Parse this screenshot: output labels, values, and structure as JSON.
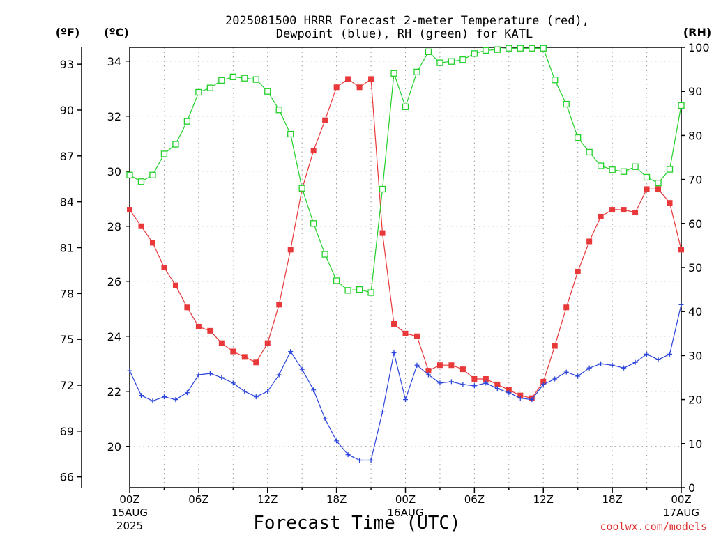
{
  "chart_data": {
    "type": "line",
    "title_line1": "2025081500 HRRR Forecast 2-meter Temperature (red),",
    "title_line2": "Dewpoint (blue), RH (green) for KATL",
    "left_unit_f": "(ºF)",
    "left_unit_c": "(ºC)",
    "right_unit": "(RH)",
    "xlabel": "Forecast Time (UTC)",
    "credit": "coolwx.com/models",
    "x_hours_range": [
      0,
      48
    ],
    "celsius_range": [
      18.5,
      34.5
    ],
    "rh_range": [
      0,
      100
    ],
    "grid": true,
    "fahrenheit_ticks": [
      66,
      69,
      72,
      75,
      78,
      81,
      84,
      87,
      90,
      93
    ],
    "celsius_ticks": [
      20,
      22,
      24,
      26,
      28,
      30,
      32,
      34
    ],
    "rh_ticks": [
      0,
      10,
      20,
      30,
      40,
      50,
      60,
      70,
      80,
      90,
      100
    ],
    "x_ticks": [
      {
        "hour": 0,
        "lines": [
          "00Z",
          "15AUG",
          "2025"
        ]
      },
      {
        "hour": 6,
        "lines": [
          "06Z"
        ]
      },
      {
        "hour": 12,
        "lines": [
          "12Z"
        ]
      },
      {
        "hour": 18,
        "lines": [
          "18Z"
        ]
      },
      {
        "hour": 24,
        "lines": [
          "00Z",
          "16AUG"
        ]
      },
      {
        "hour": 30,
        "lines": [
          "06Z"
        ]
      },
      {
        "hour": 36,
        "lines": [
          "12Z"
        ]
      },
      {
        "hour": 42,
        "lines": [
          "18Z"
        ]
      },
      {
        "hour": 48,
        "lines": [
          "00Z",
          "17AUG"
        ]
      }
    ],
    "series": [
      {
        "key": "temperature",
        "unit": "C",
        "color": "#e8383a",
        "marker": "filled-square",
        "values": [
          28.6,
          28.0,
          27.4,
          26.5,
          25.85,
          25.05,
          24.35,
          24.2,
          23.75,
          23.45,
          23.25,
          23.05,
          23.75,
          25.15,
          27.15,
          29.35,
          30.75,
          31.85,
          33.05,
          33.35,
          33.05,
          33.35,
          27.75,
          24.45,
          24.1,
          24.0,
          22.75,
          22.95,
          22.95,
          22.8,
          22.45,
          22.45,
          22.25,
          22.05,
          21.85,
          21.75,
          22.35,
          23.65,
          25.05,
          26.35,
          27.45,
          28.35,
          28.6,
          28.6,
          28.5,
          29.35,
          29.35,
          28.85,
          27.15
        ]
      },
      {
        "key": "dewpoint",
        "unit": "C",
        "color": "#2b45dc",
        "marker": "plus",
        "values": [
          22.75,
          21.85,
          21.65,
          21.8,
          21.7,
          21.95,
          22.6,
          22.65,
          22.5,
          22.3,
          22.0,
          21.8,
          22.0,
          22.6,
          23.45,
          22.8,
          22.05,
          21.0,
          20.2,
          19.7,
          19.5,
          19.5,
          21.25,
          23.4,
          21.7,
          22.95,
          22.6,
          22.3,
          22.35,
          22.25,
          22.2,
          22.3,
          22.1,
          21.95,
          21.75,
          21.7,
          22.25,
          22.45,
          22.7,
          22.55,
          22.85,
          23.0,
          22.95,
          22.85,
          23.05,
          23.35,
          23.15,
          23.35,
          25.15
        ]
      },
      {
        "key": "rh",
        "unit": "%",
        "color": "#22d02a",
        "marker": "open-square",
        "values": [
          71,
          69.5,
          71.0,
          75.8,
          78.0,
          83.2,
          89.8,
          90.8,
          92.5,
          93.3,
          93.0,
          92.7,
          90.0,
          85.8,
          80.3,
          68.0,
          60.0,
          53.0,
          47.0,
          44.8,
          45.0,
          44.3,
          67.8,
          94.1,
          86.5,
          94.4,
          99.0,
          96.5,
          96.8,
          97.2,
          98.6,
          99.3,
          99.5,
          99.8,
          99.8,
          99.8,
          99.8,
          92.6,
          87.1,
          79.5,
          76.2,
          73.1,
          72.2,
          71.8,
          72.9,
          70.5,
          69.2,
          72.3,
          86.8
        ]
      }
    ]
  }
}
